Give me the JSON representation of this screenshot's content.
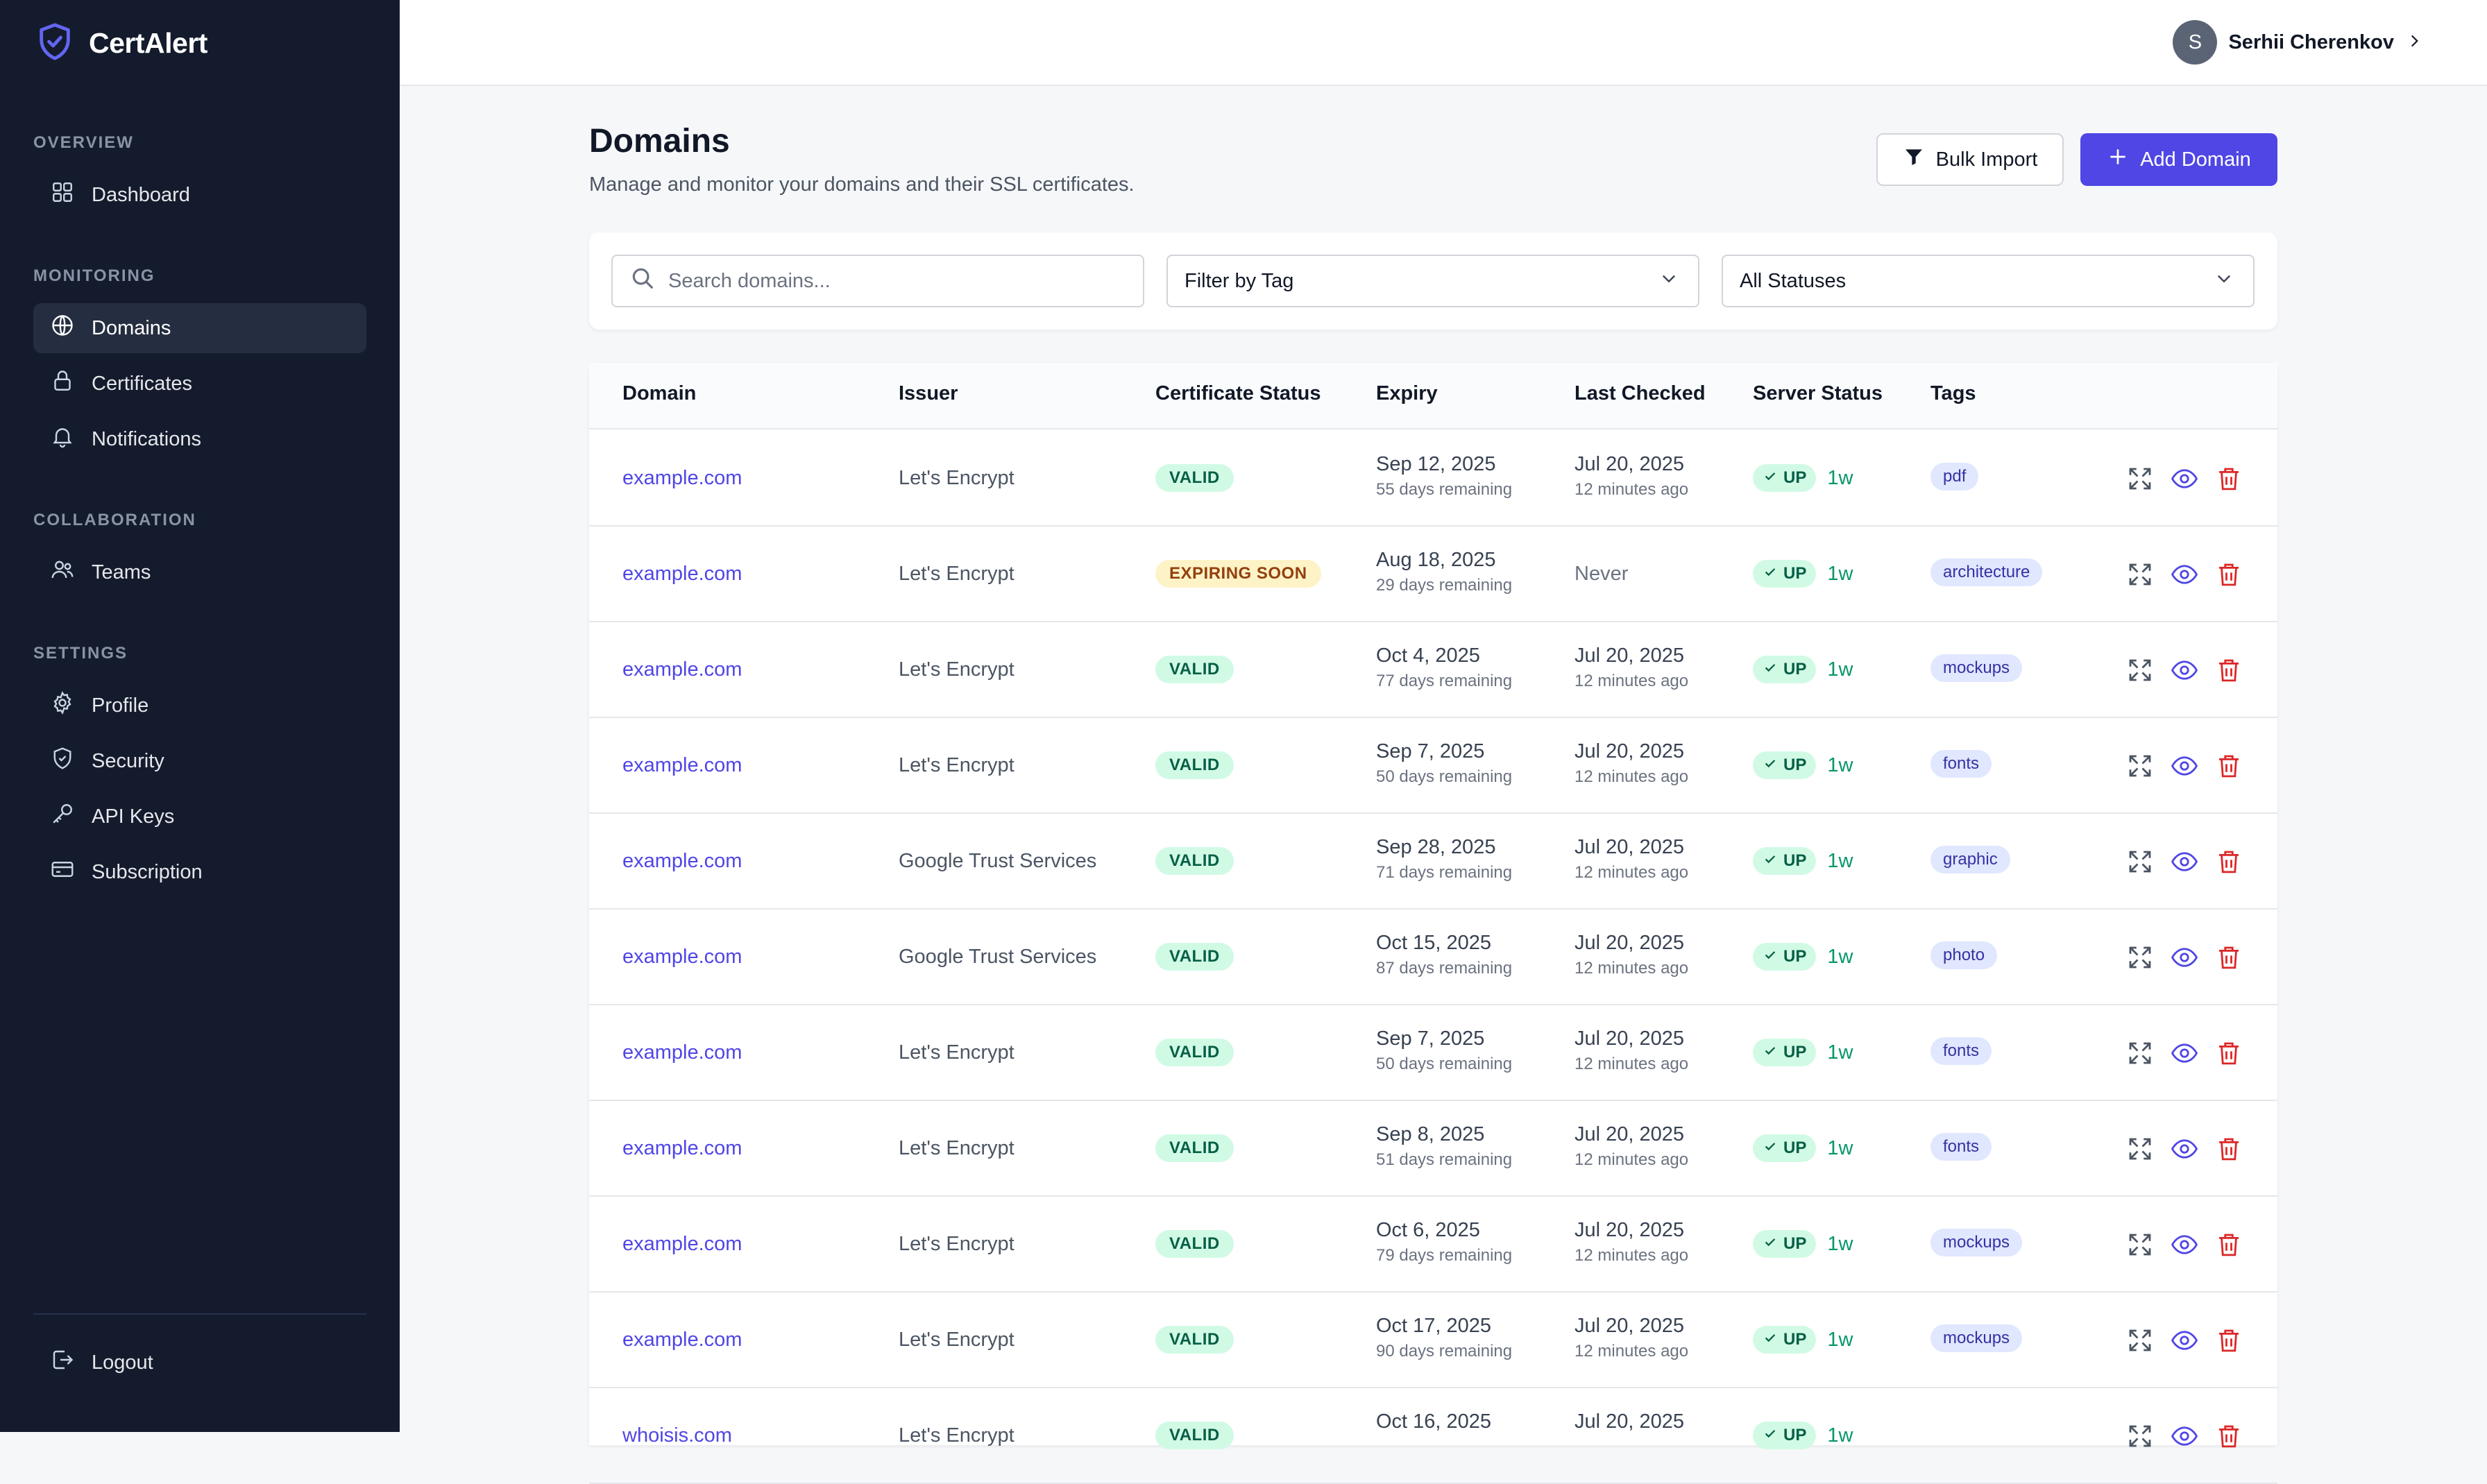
{
  "app": {
    "name": "CertAlert"
  },
  "sidebar": {
    "sections": [
      {
        "title": "OVERVIEW",
        "items": [
          {
            "label": "Dashboard",
            "icon": "dashboard-icon"
          }
        ]
      },
      {
        "title": "MONITORING",
        "items": [
          {
            "label": "Domains",
            "icon": "globe-icon",
            "active": true
          },
          {
            "label": "Certificates",
            "icon": "lock-icon"
          },
          {
            "label": "Notifications",
            "icon": "bell-icon"
          }
        ]
      },
      {
        "title": "COLLABORATION",
        "items": [
          {
            "label": "Teams",
            "icon": "users-icon"
          }
        ]
      },
      {
        "title": "SETTINGS",
        "items": [
          {
            "label": "Profile",
            "icon": "gear-icon"
          },
          {
            "label": "Security",
            "icon": "shield-check-icon"
          },
          {
            "label": "API Keys",
            "icon": "key-icon"
          },
          {
            "label": "Subscription",
            "icon": "credit-card-icon"
          }
        ]
      }
    ],
    "logout_label": "Logout"
  },
  "header": {
    "user": {
      "initial": "S",
      "name": "Serhii Cherenkov"
    }
  },
  "page": {
    "title": "Domains",
    "subtitle": "Manage and monitor your domains and their SSL certificates.",
    "bulk_import_label": "Bulk Import",
    "add_domain_label": "Add Domain"
  },
  "filters": {
    "search_placeholder": "Search domains...",
    "search_value": "",
    "tag_filter": "Filter by Tag",
    "status_filter": "All Statuses"
  },
  "table": {
    "columns": [
      "Domain",
      "Issuer",
      "Certificate Status",
      "Expiry",
      "Last Checked",
      "Server Status",
      "Tags"
    ],
    "rows": [
      {
        "domain": "example.com",
        "issuer": "Let's Encrypt",
        "cert_status": "VALID",
        "expiry": "Sep 12, 2025",
        "remaining": "55 days remaining",
        "checked": "Jul 20, 2025",
        "checked_ago": "12 minutes ago",
        "server": "UP",
        "uptime": "1w",
        "tag": "pdf"
      },
      {
        "domain": "example.com",
        "issuer": "Let's Encrypt",
        "cert_status": "EXPIRING SOON",
        "expiry": "Aug 18, 2025",
        "remaining": "29 days remaining",
        "checked": "Never",
        "checked_ago": "",
        "server": "UP",
        "uptime": "1w",
        "tag": "architecture"
      },
      {
        "domain": "example.com",
        "issuer": "Let's Encrypt",
        "cert_status": "VALID",
        "expiry": "Oct 4, 2025",
        "remaining": "77 days remaining",
        "checked": "Jul 20, 2025",
        "checked_ago": "12 minutes ago",
        "server": "UP",
        "uptime": "1w",
        "tag": "mockups"
      },
      {
        "domain": "example.com",
        "issuer": "Let's Encrypt",
        "cert_status": "VALID",
        "expiry": "Sep 7, 2025",
        "remaining": "50 days remaining",
        "checked": "Jul 20, 2025",
        "checked_ago": "12 minutes ago",
        "server": "UP",
        "uptime": "1w",
        "tag": "fonts"
      },
      {
        "domain": "example.com",
        "issuer": "Google Trust Services",
        "cert_status": "VALID",
        "expiry": "Sep 28, 2025",
        "remaining": "71 days remaining",
        "checked": "Jul 20, 2025",
        "checked_ago": "12 minutes ago",
        "server": "UP",
        "uptime": "1w",
        "tag": "graphic"
      },
      {
        "domain": "example.com",
        "issuer": "Google Trust Services",
        "cert_status": "VALID",
        "expiry": "Oct 15, 2025",
        "remaining": "87 days remaining",
        "checked": "Jul 20, 2025",
        "checked_ago": "12 minutes ago",
        "server": "UP",
        "uptime": "1w",
        "tag": "photo"
      },
      {
        "domain": "example.com",
        "issuer": "Let's Encrypt",
        "cert_status": "VALID",
        "expiry": "Sep 7, 2025",
        "remaining": "50 days remaining",
        "checked": "Jul 20, 2025",
        "checked_ago": "12 minutes ago",
        "server": "UP",
        "uptime": "1w",
        "tag": "fonts"
      },
      {
        "domain": "example.com",
        "issuer": "Let's Encrypt",
        "cert_status": "VALID",
        "expiry": "Sep 8, 2025",
        "remaining": "51 days remaining",
        "checked": "Jul 20, 2025",
        "checked_ago": "12 minutes ago",
        "server": "UP",
        "uptime": "1w",
        "tag": "fonts"
      },
      {
        "domain": "example.com",
        "issuer": "Let's Encrypt",
        "cert_status": "VALID",
        "expiry": "Oct 6, 2025",
        "remaining": "79 days remaining",
        "checked": "Jul 20, 2025",
        "checked_ago": "12 minutes ago",
        "server": "UP",
        "uptime": "1w",
        "tag": "mockups"
      },
      {
        "domain": "example.com",
        "issuer": "Let's Encrypt",
        "cert_status": "VALID",
        "expiry": "Oct 17, 2025",
        "remaining": "90 days remaining",
        "checked": "Jul 20, 2025",
        "checked_ago": "12 minutes ago",
        "server": "UP",
        "uptime": "1w",
        "tag": "mockups"
      },
      {
        "domain": "whoisis.com",
        "issuer": "Let's Encrypt",
        "cert_status": "VALID",
        "expiry": "Oct 16, 2025",
        "remaining": "",
        "checked": "Jul 20, 2025",
        "checked_ago": "",
        "server": "UP",
        "uptime": "1w",
        "tag": ""
      }
    ]
  },
  "colors": {
    "sidebar_bg": "#141b2d",
    "accent": "#4f46e5",
    "valid_bg": "#d1fae5",
    "expiring_bg": "#fef3c7",
    "danger": "#dc2626"
  }
}
